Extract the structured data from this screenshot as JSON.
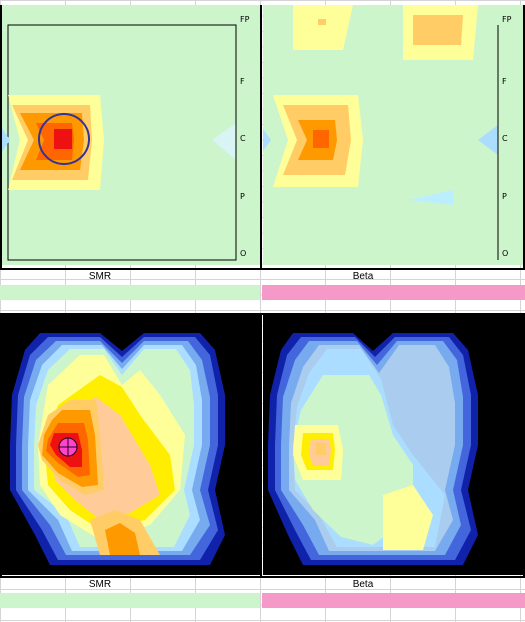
{
  "panels": [
    {
      "title": "SMR",
      "bar_color": "#ccf5cc"
    },
    {
      "title": "Beta",
      "bar_color": "#f59ac8"
    },
    {
      "title": "SMR",
      "bar_color": "#ccf5cc"
    },
    {
      "title": "Beta",
      "bar_color": "#f59ac8"
    }
  ],
  "axis_ticks": [
    "FP",
    "F",
    "C",
    "P",
    "O"
  ],
  "colors": {
    "background_green": "#ccf5cc",
    "light_yellow": "#ffff99",
    "yellow": "#ffee00",
    "orange_light": "#ffcc66",
    "orange": "#ff9900",
    "orange_dark": "#ff6600",
    "red": "#ee1111",
    "peach": "#ffcc99",
    "light_blue": "#aaddff",
    "blue_mid": "#77aaee",
    "blue": "#4466dd",
    "navy": "#1122aa",
    "black": "#000000",
    "magenta": "#ff44cc"
  }
}
